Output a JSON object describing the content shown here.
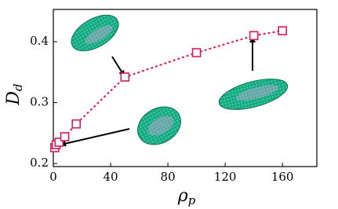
{
  "chart_data": {
    "type": "line",
    "xlabel": "ρ",
    "xlabel_sub": "p",
    "ylabel": "D",
    "ylabel_sub": "d",
    "x": [
      1,
      2,
      4,
      8,
      16,
      50,
      100,
      140,
      160
    ],
    "series": [
      {
        "color": "#d81b5a",
        "values": [
          0.226,
          0.231,
          0.235,
          0.244,
          0.265,
          0.342,
          0.382,
          0.41,
          0.418
        ]
      }
    ],
    "xlim": [
      0,
      184
    ],
    "xticks": [
      0,
      40,
      80,
      120,
      160
    ],
    "ylim": [
      0.195,
      0.453
    ],
    "yticks": [
      0.2,
      0.3,
      0.4
    ],
    "line_style": "dashed",
    "marker": "square"
  }
}
